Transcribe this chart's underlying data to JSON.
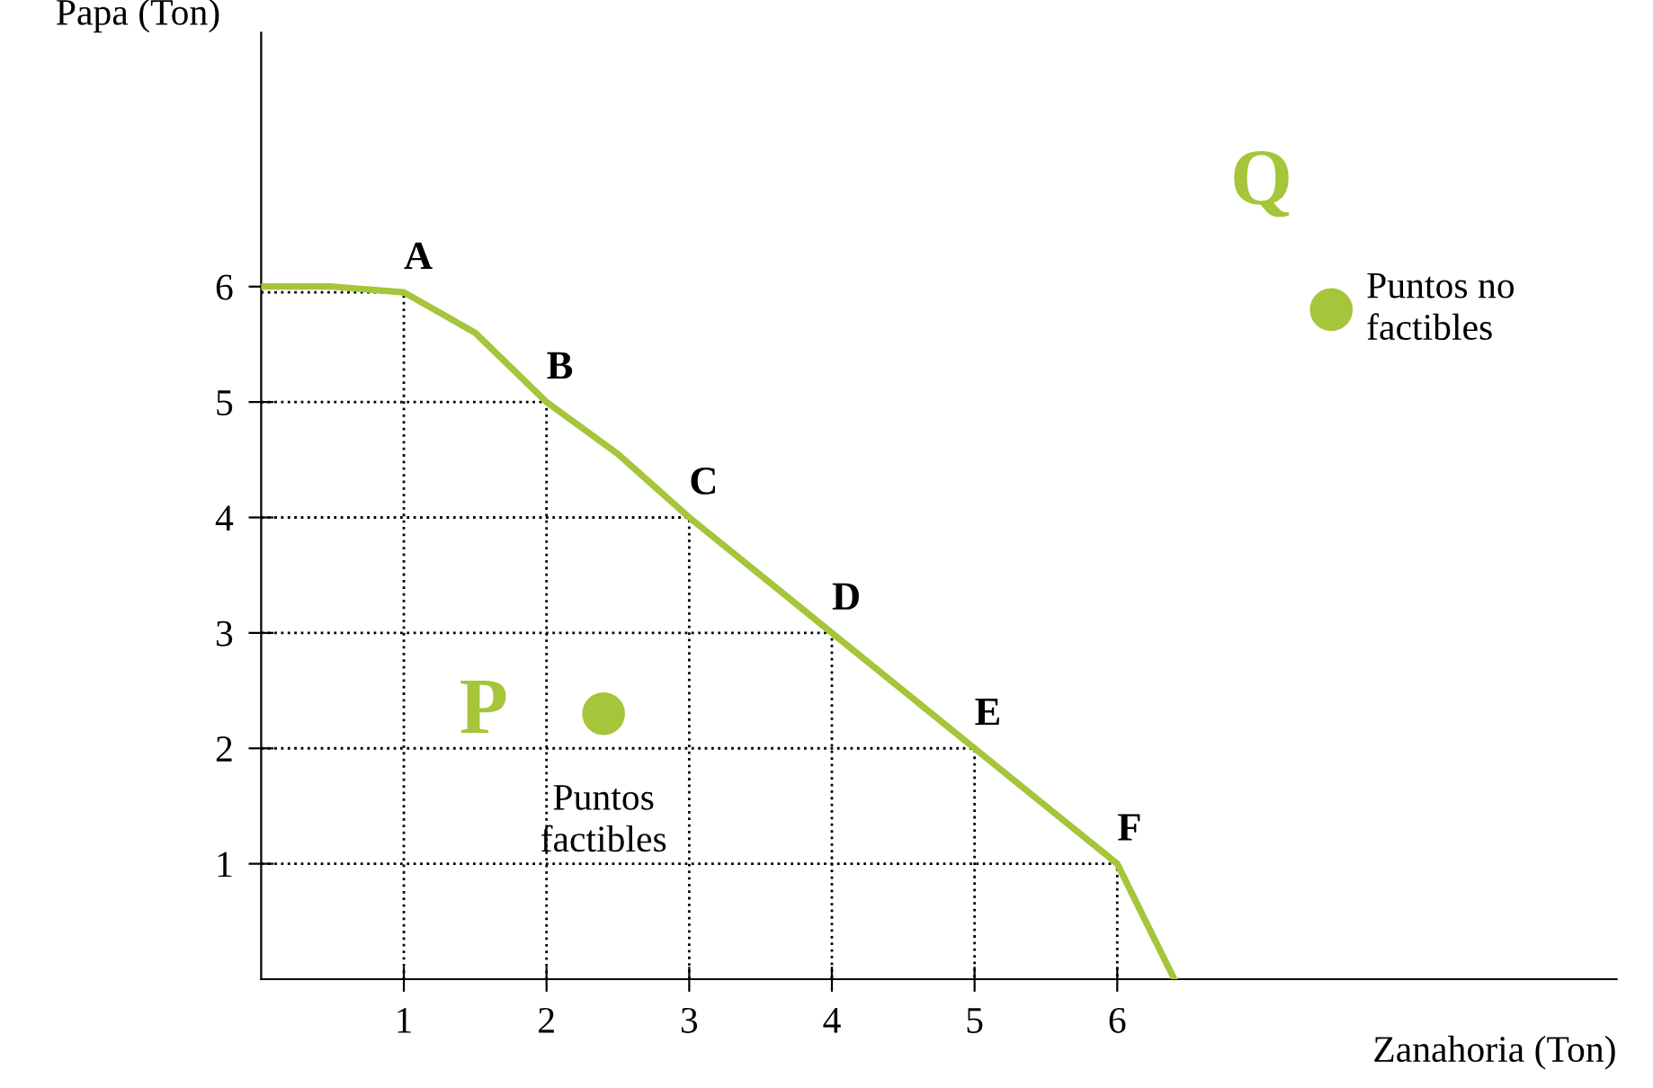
{
  "chart_data": {
    "type": "line",
    "xlabel": "Zanahoria (Ton)",
    "ylabel": "Papa (Ton)",
    "xlim": [
      0,
      9.5
    ],
    "ylim": [
      0,
      8.2
    ],
    "xticks": [
      1,
      2,
      3,
      4,
      5,
      6
    ],
    "yticks": [
      1,
      2,
      3,
      4,
      5,
      6
    ],
    "grid": false,
    "series": [
      {
        "color": "#a5c53a",
        "line_style": "solid",
        "x": [
          0,
          0.5,
          1,
          1.5,
          2,
          2.5,
          3,
          3.5,
          4,
          4.5,
          5,
          5.5,
          6,
          6.2,
          6.4
        ],
        "values": [
          6,
          6,
          5.95,
          5.6,
          5,
          4.55,
          4,
          3.5,
          3,
          2.5,
          2,
          1.5,
          1,
          0.5,
          0
        ]
      },
      {
        "type": "line",
        "color": "#000000",
        "line_style": "dotted",
        "x": [
          0,
          1,
          1
        ],
        "values": [
          5.95,
          5.95,
          0
        ]
      },
      {
        "type": "line",
        "color": "#000000",
        "line_style": "dotted",
        "x": [
          0,
          2,
          2
        ],
        "values": [
          5,
          5,
          0
        ]
      },
      {
        "type": "line",
        "color": "#000000",
        "line_style": "dotted",
        "x": [
          0,
          3,
          3
        ],
        "values": [
          4,
          4,
          0
        ]
      },
      {
        "type": "line",
        "color": "#000000",
        "line_style": "dotted",
        "x": [
          0,
          4,
          4
        ],
        "values": [
          3,
          3,
          0
        ]
      },
      {
        "type": "line",
        "color": "#000000",
        "line_style": "dotted",
        "x": [
          0,
          5,
          5
        ],
        "values": [
          2,
          2,
          0
        ]
      },
      {
        "type": "line",
        "color": "#000000",
        "line_style": "dotted",
        "x": [
          0,
          6,
          6
        ],
        "values": [
          1,
          1,
          0
        ]
      },
      {
        "type": "scatter",
        "color": "#a5c53a",
        "marker": "circle",
        "x": [
          2.4,
          7.5
        ],
        "values": [
          2.3,
          5.8
        ]
      }
    ],
    "annotations": [
      {
        "text": "A",
        "x": 1,
        "y": 5.95
      },
      {
        "text": "B",
        "x": 2,
        "y": 5
      },
      {
        "text": "C",
        "x": 3,
        "y": 4
      },
      {
        "text": "D",
        "x": 4,
        "y": 3
      },
      {
        "text": "E",
        "x": 5,
        "y": 2
      },
      {
        "text": "F",
        "x": 6,
        "y": 1
      },
      "P",
      "Q",
      "Puntos\nfactibles",
      "Puntos no\nfactibles"
    ]
  }
}
